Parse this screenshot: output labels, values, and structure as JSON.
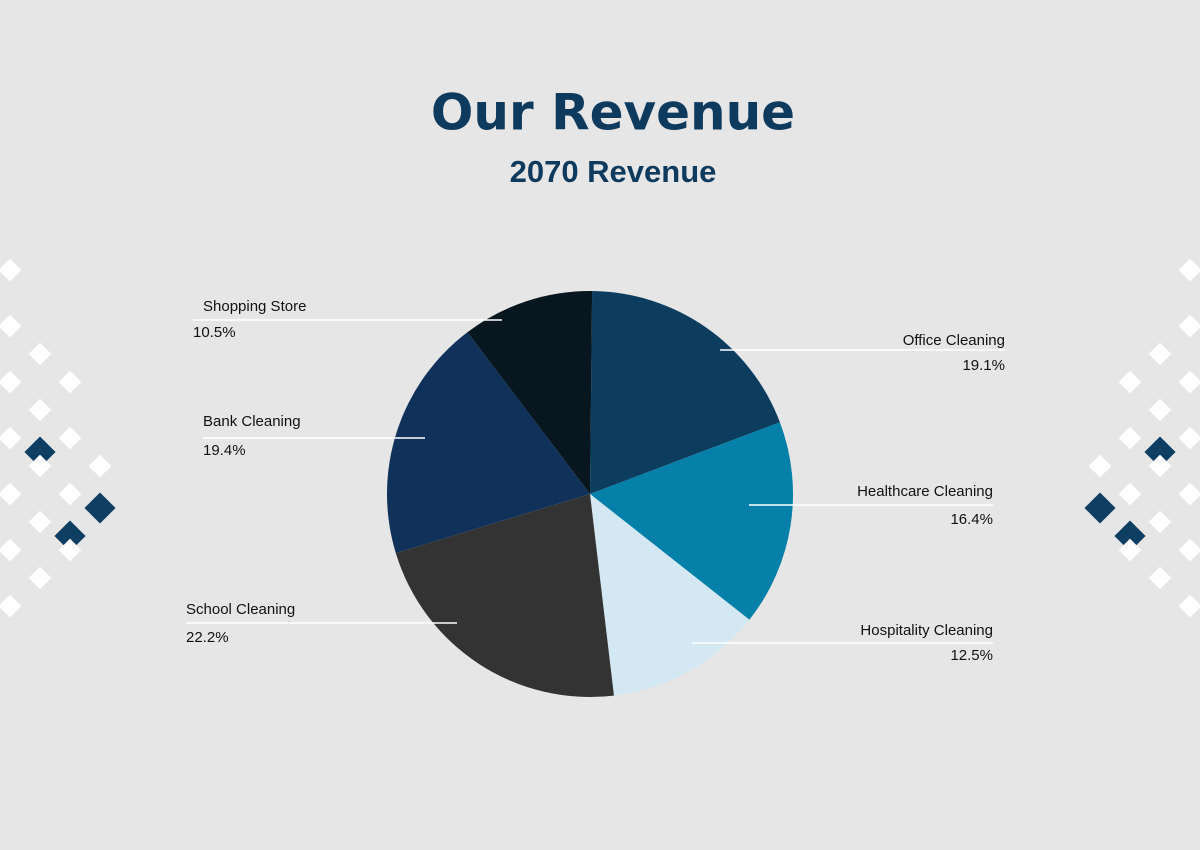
{
  "chart_data": {
    "type": "pie",
    "title": "Our Revenue",
    "subtitle": "2070 Revenue",
    "categories": [
      "Office Cleaning",
      "Healthcare Cleaning",
      "Hospitality Cleaning",
      "School Cleaning",
      "Bank Cleaning",
      "Shopping Store"
    ],
    "values": [
      19.1,
      16.4,
      12.5,
      22.2,
      19.4,
      10.5
    ],
    "value_labels": [
      "19.1%",
      "16.4%",
      "12.5%",
      "22.2%",
      "19.4%",
      "10.5%"
    ],
    "colors": [
      "#0d3d5e",
      "#0580a8",
      "#d4e8f3",
      "#333333",
      "#10325a",
      "#08171f"
    ]
  }
}
